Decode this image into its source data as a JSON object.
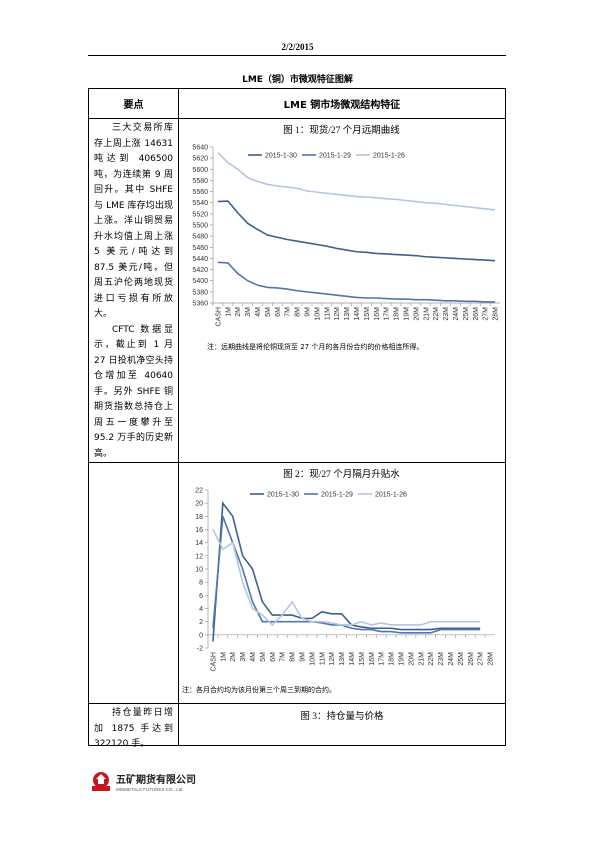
{
  "header": {
    "date": "2/2/2015"
  },
  "title": "LME（铜）市微观特征图解",
  "table": {
    "headers": [
      "要点",
      "LME 铜市场微观结构特征"
    ],
    "rows": [
      {
        "points": [
          "三大交易所库存上周上涨 14631 吨达到 406500 吨，为连续第 9 周回升。其中 SHFE 与 LME 库存均出现上涨。洋山铜贸易升水均值上周上涨 5 美元/吨达到 87.5 美元/吨，但周五沪伦两地现货进口亏损有所放大。",
          "CFTC 数据显示，截止到 1 月 27 日投机净空头持仓增加至 40640 手。另外 SHFE 铜期货指数总持仓上周五一度攀升至 95.2 万手的历史新高。"
        ]
      },
      {
        "points": []
      },
      {
        "points": [
          "持仓量昨日增加 1875 手达到 322120 手。"
        ],
        "figure_title": "图 3：持仓量与价格"
      }
    ]
  },
  "chart_data": [
    {
      "type": "line",
      "title": "图 1：现货/27 个月远期曲线",
      "note": "注：远期曲线是将伦铜现货至 27 个月的各月份合约的价格相连所得。",
      "categories": [
        "CASH",
        "1M",
        "2M",
        "3M",
        "4M",
        "5M",
        "6M",
        "7M",
        "8M",
        "9M",
        "10M",
        "11M",
        "12M",
        "13M",
        "14M",
        "15M",
        "16M",
        "17M",
        "18M",
        "19M",
        "20M",
        "21M",
        "22M",
        "23M",
        "24M",
        "25M",
        "26M",
        "27M",
        "28M"
      ],
      "series": [
        {
          "name": "2015-1-30",
          "color": "#3d5f8f",
          "values": [
            5542,
            5543,
            5522,
            5503,
            5492,
            5482,
            5478,
            5474,
            5471,
            5468,
            5465,
            5462,
            5458,
            5455,
            5452,
            5451,
            5449,
            5448,
            5447,
            5446,
            5445,
            5443,
            5442,
            5441,
            5440,
            5439,
            5438,
            5437,
            5436
          ]
        },
        {
          "name": "2015-1-29",
          "color": "#4f76ad",
          "values": [
            5433,
            5432,
            5413,
            5400,
            5392,
            5388,
            5387,
            5385,
            5382,
            5380,
            5378,
            5376,
            5374,
            5372,
            5370,
            5369,
            5369,
            5368,
            5367,
            5367,
            5366,
            5366,
            5365,
            5364,
            5364,
            5363,
            5363,
            5362,
            5362
          ]
        },
        {
          "name": "2015-1-26",
          "color": "#b3c5e0",
          "values": [
            5630,
            5612,
            5600,
            5585,
            5578,
            5573,
            5570,
            5568,
            5566,
            5561,
            5559,
            5557,
            5555,
            5553,
            5551,
            5550,
            5549,
            5547,
            5546,
            5544,
            5542,
            5540,
            5539,
            5537,
            5535,
            5533,
            5531,
            5529,
            5527
          ]
        }
      ],
      "ylim": [
        5360,
        5640
      ],
      "yticks": [
        5360,
        5380,
        5400,
        5420,
        5440,
        5460,
        5480,
        5500,
        5520,
        5540,
        5560,
        5580,
        5600,
        5620,
        5640
      ],
      "grid": false,
      "legend": "top"
    },
    {
      "type": "line",
      "title": "图 2：现/27 个月隔月升贴水",
      "note": "注：各月合约均为该月份第三个周三到期的合约。",
      "categories": [
        "CASH",
        "1M",
        "2M",
        "3M",
        "4M",
        "5M",
        "6M",
        "7M",
        "8M",
        "9M",
        "10M",
        "11M",
        "12M",
        "13M",
        "14M",
        "15M",
        "16M",
        "17M",
        "18M",
        "19M",
        "20M",
        "21M",
        "22M",
        "23M",
        "24M",
        "25M",
        "26M",
        "27M",
        "28M"
      ],
      "series": [
        {
          "name": "2015-1-30",
          "color": "#3d5f8f",
          "values": [
            -1,
            20,
            18,
            12,
            10,
            5,
            3,
            3,
            3,
            2.5,
            2.5,
            3.5,
            3.2,
            3.2,
            1.5,
            1.2,
            1,
            1,
            1,
            0.8,
            0.8,
            0.8,
            0.8,
            1,
            1,
            1,
            1,
            1,
            null
          ]
        },
        {
          "name": "2015-1-29",
          "color": "#4f76ad",
          "values": [
            1,
            18,
            14,
            10,
            5,
            2,
            2,
            2,
            2,
            2,
            2,
            1.8,
            1.5,
            1.5,
            1,
            0.8,
            0.8,
            0.5,
            0.5,
            0.3,
            0.3,
            0.3,
            0.3,
            0.8,
            0.8,
            0.8,
            0.8,
            0.8,
            null
          ]
        },
        {
          "name": "2015-1-26",
          "color": "#b3c5e0",
          "values": [
            16,
            13,
            14,
            8,
            4,
            3,
            1.5,
            3,
            5,
            2.5,
            2,
            2,
            1.8,
            1.5,
            1.5,
            2,
            1.5,
            1.8,
            1.5,
            1.5,
            1.5,
            1.5,
            2,
            2,
            2,
            2,
            2,
            2,
            null
          ]
        }
      ],
      "ylim": [
        -2,
        22
      ],
      "yticks": [
        -2,
        0,
        2,
        4,
        6,
        8,
        10,
        12,
        14,
        16,
        18,
        20,
        22
      ],
      "grid": false,
      "legend": "top"
    }
  ]
}
